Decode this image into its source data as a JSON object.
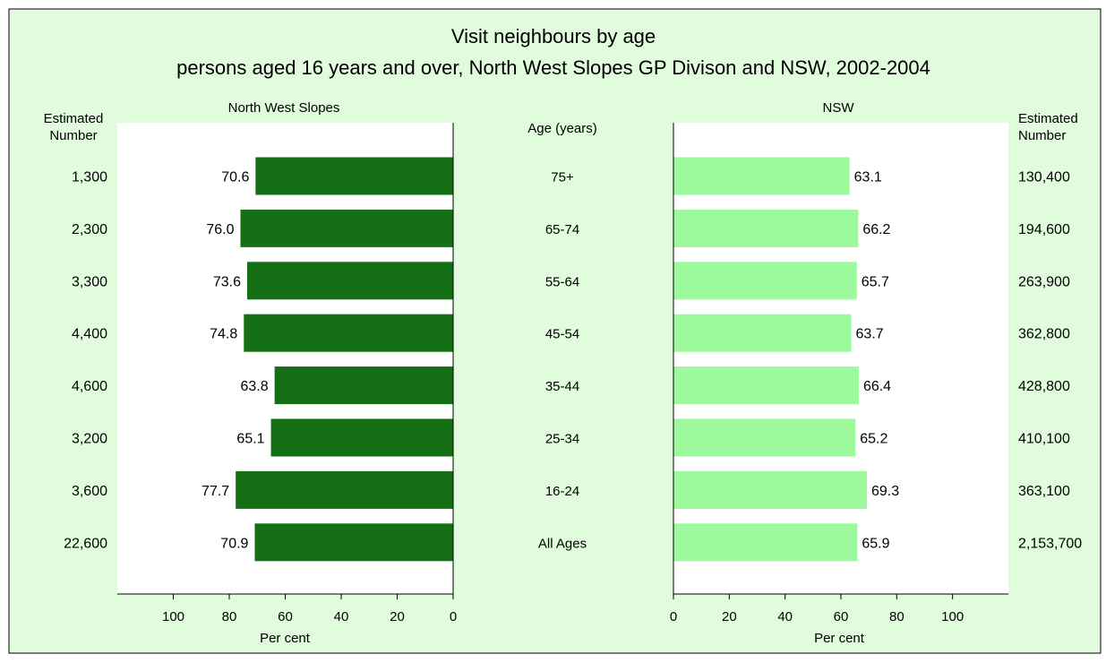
{
  "chart_data": {
    "type": "bar",
    "title": "Visit neighbours by age",
    "subtitle": "persons aged 16 years and over, North West Slopes GP Divison and NSW, 2002-2004",
    "category_header": "Age (years)",
    "categories": [
      "75+",
      "65-74",
      "55-64",
      "45-54",
      "35-44",
      "25-34",
      "16-24",
      "All Ages"
    ],
    "estimated_header": "Estimated\nNumber",
    "xlabel": "Per cent",
    "xlim": [
      0,
      120
    ],
    "xticks": [
      0,
      20,
      40,
      60,
      80,
      100
    ],
    "grid": false,
    "series": [
      {
        "name": "North West Slopes",
        "values": [
          70.6,
          76.0,
          73.6,
          74.8,
          63.8,
          65.1,
          77.7,
          70.9
        ],
        "value_labels": [
          "70.6",
          "76.0",
          "73.6",
          "74.8",
          "63.8",
          "65.1",
          "77.7",
          "70.9"
        ],
        "estimated_numbers": [
          "1,300",
          "2,300",
          "3,300",
          "4,400",
          "4,600",
          "3,200",
          "3,600",
          "22,600"
        ],
        "color": "#157015",
        "direction": "left"
      },
      {
        "name": "NSW",
        "values": [
          63.1,
          66.2,
          65.7,
          63.7,
          66.4,
          65.2,
          69.3,
          65.9
        ],
        "value_labels": [
          "63.1",
          "66.2",
          "65.7",
          "63.7",
          "66.4",
          "65.2",
          "69.3",
          "65.9"
        ],
        "estimated_numbers": [
          "130,400",
          "194,600",
          "263,900",
          "362,800",
          "428,800",
          "410,100",
          "363,100",
          "2,153,700"
        ],
        "color": "#9cfa9c",
        "direction": "right"
      }
    ]
  },
  "colors": {
    "background": "#e0fcdc",
    "panel": "#ffffff"
  }
}
